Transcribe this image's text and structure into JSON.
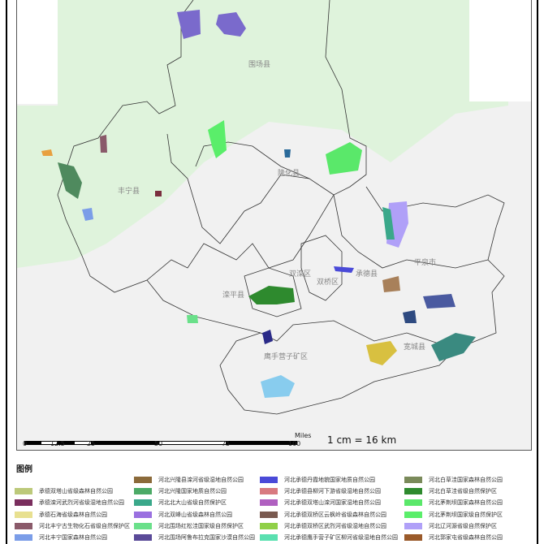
{
  "map": {
    "place_labels": [
      "围场县",
      "丰宁县",
      "隆化县",
      "平泉市",
      "承德县",
      "双桥区",
      "双滦区",
      "滦平县",
      "宽城县",
      "鹰手营子矿区"
    ],
    "scale_bar": {
      "unit": "Miles",
      "ticks": [
        "0",
        "12.5",
        "25",
        "50",
        "75",
        "100"
      ]
    },
    "scale_ratio": "1 cm = 16 km"
  },
  "legend": {
    "title": "图例",
    "items": [
      {
        "label": "承德双塔山省级森林自然公园",
        "color": "#bcc97a"
      },
      {
        "label": "承德滦河武烈河省级湿地自然公园",
        "color": "#7a2e5e"
      },
      {
        "label": "承德石海省级森林自然公园",
        "color": "#e8e090"
      },
      {
        "label": "河北丰宁古生物化石省级自然保护区",
        "color": "#8a5a6a"
      },
      {
        "label": "河北丰宁国家森林自然公园",
        "color": "#7b9de8"
      },
      {
        "label": "河北兴隆县滦河省级湿地自然公园",
        "color": "#8b6a3a"
      },
      {
        "label": "河北兴隆国家地质自然公园",
        "color": "#4caa66"
      },
      {
        "label": "河北北大山省级自然保护区",
        "color": "#3aa88a"
      },
      {
        "label": "河北双峰山省级森林自然公园",
        "color": "#9a70e0"
      },
      {
        "label": "河北围场红松洼国家级自然保护区",
        "color": "#6ae08a"
      },
      {
        "label": "河北围场阿鲁布拉克国家沙漠自然公园",
        "color": "#5a4a98"
      },
      {
        "label": "河北承德丹霞地貌国家地质自然公园",
        "color": "#4a4ad8"
      },
      {
        "label": "河北承德县柳河下游省级湿地自然公园",
        "color": "#d87a80"
      },
      {
        "label": "河北承德双塔山滦河国家湿地自然公园",
        "color": "#b060c0"
      },
      {
        "label": "河北承德双桥区云枫岭省级森林自然公园",
        "color": "#7a5a50"
      },
      {
        "label": "河北承德双桥区武烈河省级湿地自然公园",
        "color": "#90d048"
      },
      {
        "label": "河北承德鹰手营子矿区柳河省级湿地自然公园",
        "color": "#5ae0b0"
      },
      {
        "label": "河北白草洼国家森林自然公园",
        "color": "#7a8a5a"
      },
      {
        "label": "河北白草洼省级自然保护区",
        "color": "#2e8a2e"
      },
      {
        "label": "河北茅荆坝国家森林自然公园",
        "color": "#5ae86a"
      },
      {
        "label": "河北茅荆坝国家级自然保护区",
        "color": "#5aee6a"
      },
      {
        "label": "河北辽河源省级自然保护区",
        "color": "#b0a0f8"
      },
      {
        "label": "河北郭家屯省级森林自然公园",
        "color": "#9a5a2a"
      }
    ]
  }
}
